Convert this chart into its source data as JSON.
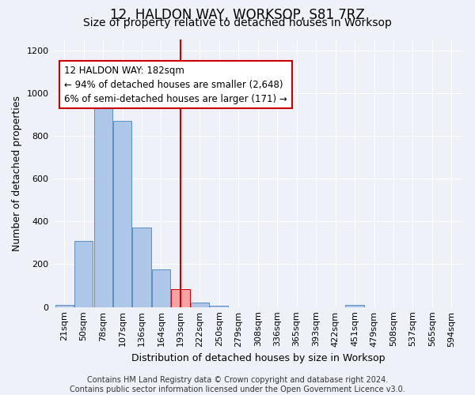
{
  "title": "12, HALDON WAY, WORKSOP, S81 7RZ",
  "subtitle": "Size of property relative to detached houses in Worksop",
  "xlabel": "Distribution of detached houses by size in Worksop",
  "ylabel": "Number of detached properties",
  "categories": [
    "21sqm",
    "50sqm",
    "78sqm",
    "107sqm",
    "136sqm",
    "164sqm",
    "193sqm",
    "222sqm",
    "250sqm",
    "279sqm",
    "308sqm",
    "336sqm",
    "365sqm",
    "393sqm",
    "422sqm",
    "451sqm",
    "479sqm",
    "508sqm",
    "537sqm",
    "565sqm",
    "594sqm"
  ],
  "values": [
    10,
    310,
    975,
    870,
    370,
    175,
    85,
    20,
    5,
    0,
    0,
    0,
    0,
    0,
    0,
    10,
    0,
    0,
    0,
    0,
    0
  ],
  "bar_color": "#aec6e8",
  "bar_edge_color": "#5a8fc0",
  "highlight_index": 6,
  "highlight_bar_color": "#f4a4a4",
  "highlight_bar_edge_color": "#cc0000",
  "vline_color": "#cc0000",
  "annotation_text": "12 HALDON WAY: 182sqm\n← 94% of detached houses are smaller (2,648)\n6% of semi-detached houses are larger (171) →",
  "annotation_box_color": "#ffffff",
  "annotation_box_edge_color": "#cc0000",
  "footer_text": "Contains HM Land Registry data © Crown copyright and database right 2024.\nContains public sector information licensed under the Open Government Licence v3.0.",
  "ylim": [
    0,
    1250
  ],
  "yticks": [
    0,
    200,
    400,
    600,
    800,
    1000,
    1200
  ],
  "background_color": "#eef2f8",
  "grid_color": "#ffffff",
  "title_fontsize": 12,
  "subtitle_fontsize": 10,
  "axis_label_fontsize": 9,
  "tick_fontsize": 8,
  "annotation_fontsize": 8.5,
  "footer_fontsize": 7
}
